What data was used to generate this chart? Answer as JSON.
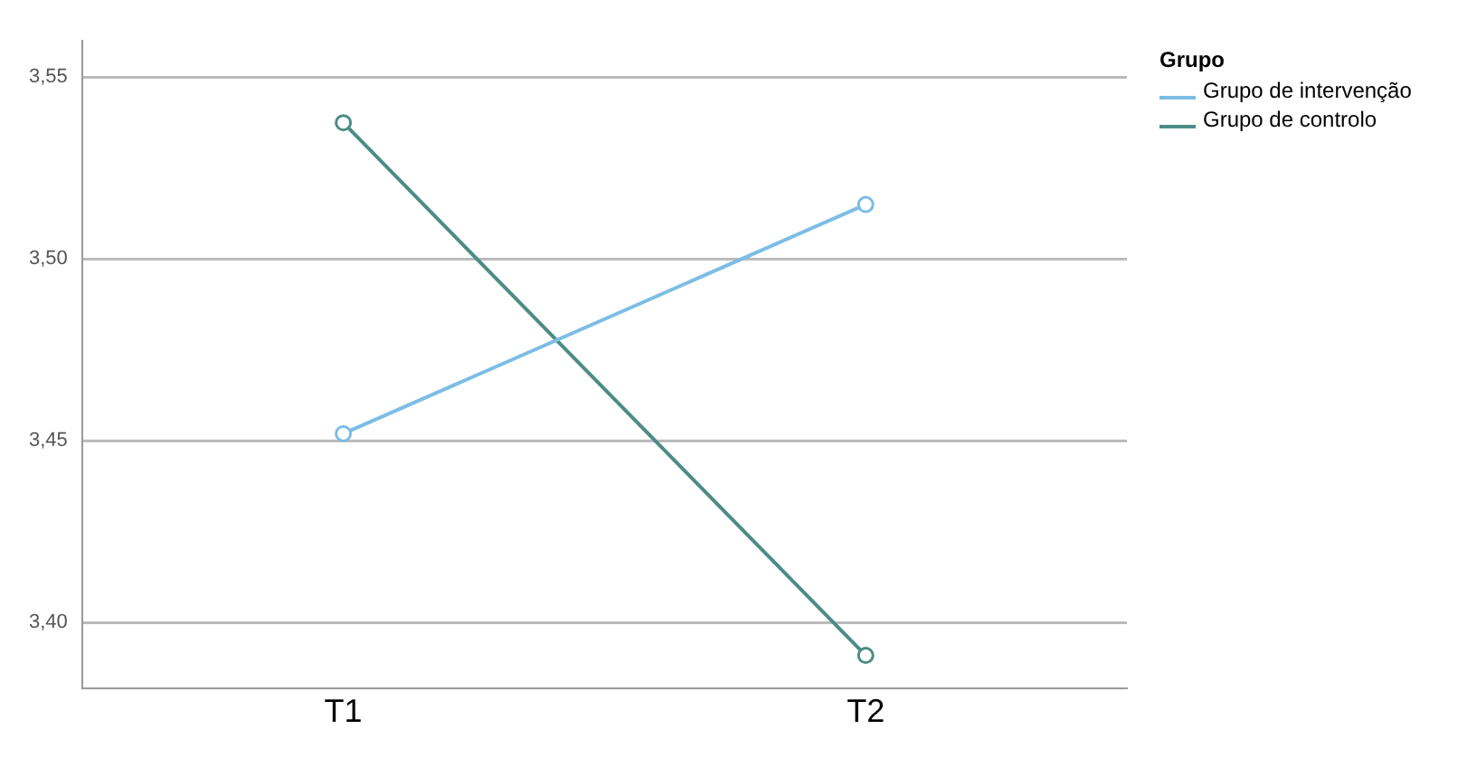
{
  "chart_data": {
    "type": "line",
    "legend_title": "Grupo",
    "categories": [
      "T1",
      "T2"
    ],
    "series": [
      {
        "name": "Grupo de intervenção",
        "color": "#7cbde6",
        "values": [
          3.452,
          3.515
        ]
      },
      {
        "name": "Grupo de controlo",
        "color": "#4d8c86",
        "values": [
          3.5375,
          3.391
        ]
      }
    ],
    "ylim": [
      3.382,
      3.56
    ],
    "yticks": [
      {
        "value": 3.4,
        "label": "3,40"
      },
      {
        "value": 3.45,
        "label": "3,45"
      },
      {
        "value": 3.5,
        "label": "3,50"
      },
      {
        "value": 3.55,
        "label": "3,55"
      }
    ],
    "grid": "y",
    "legend": "top right",
    "marker": "circle",
    "line_style": "solid"
  }
}
